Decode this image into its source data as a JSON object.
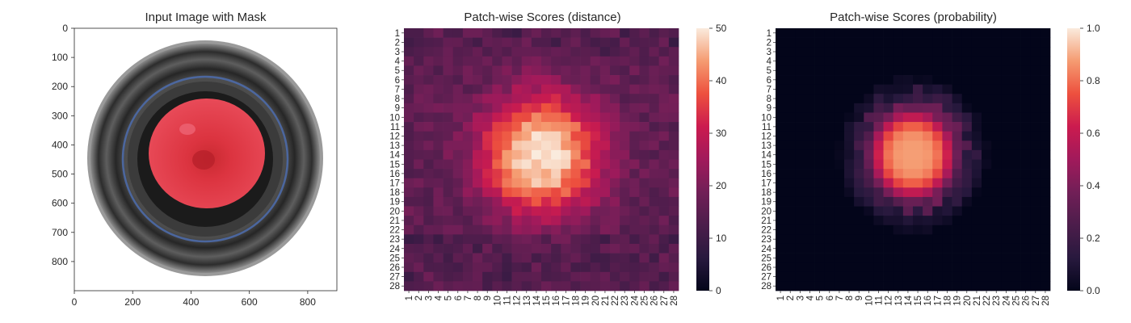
{
  "chart_data": [
    {
      "type": "image",
      "title": "Input Image with Mask",
      "xlim": [
        0,
        900
      ],
      "ylim": [
        0,
        900
      ],
      "xticks": [
        0,
        200,
        400,
        600,
        800
      ],
      "yticks": [
        0,
        100,
        200,
        300,
        400,
        500,
        600,
        700,
        800
      ],
      "content": "glass jar seen from above with red masked region",
      "mask_color": "#e0303a"
    },
    {
      "type": "heatmap",
      "title": "Patch-wise Scores (distance)",
      "rows": 28,
      "cols": 28,
      "row_labels": [
        "1",
        "2",
        "3",
        "4",
        "5",
        "6",
        "7",
        "8",
        "9",
        "10",
        "11",
        "12",
        "13",
        "14",
        "15",
        "16",
        "17",
        "18",
        "19",
        "20",
        "21",
        "22",
        "23",
        "24",
        "25",
        "26",
        "27",
        "28"
      ],
      "col_labels": [
        "1",
        "2",
        "3",
        "4",
        "5",
        "6",
        "7",
        "8",
        "9",
        "10",
        "11",
        "12",
        "13",
        "14",
        "15",
        "16",
        "17",
        "18",
        "19",
        "20",
        "21",
        "22",
        "23",
        "24",
        "25",
        "26",
        "27",
        "28"
      ],
      "colorbar": {
        "min": 0,
        "max": 50,
        "ticks": [
          0,
          10,
          20,
          30,
          40,
          50
        ]
      },
      "colormap": "rocket",
      "blob_center": {
        "row": 14,
        "col": 14.5
      },
      "peak_value": 49,
      "background_value": 16
    },
    {
      "type": "heatmap",
      "title": "Patch-wise Scores (probability)",
      "rows": 28,
      "cols": 28,
      "row_labels": [
        "1",
        "2",
        "3",
        "4",
        "5",
        "6",
        "7",
        "8",
        "9",
        "10",
        "11",
        "12",
        "13",
        "14",
        "15",
        "16",
        "17",
        "18",
        "19",
        "20",
        "21",
        "22",
        "23",
        "24",
        "25",
        "26",
        "27",
        "28"
      ],
      "col_labels": [
        "1",
        "2",
        "3",
        "4",
        "5",
        "6",
        "7",
        "8",
        "9",
        "10",
        "11",
        "12",
        "13",
        "14",
        "15",
        "16",
        "17",
        "18",
        "19",
        "20",
        "21",
        "22",
        "23",
        "24",
        "25",
        "26",
        "27",
        "28"
      ],
      "colorbar": {
        "min": 0.0,
        "max": 1.0,
        "ticks": [
          "0.0",
          "0.2",
          "0.4",
          "0.6",
          "0.8",
          "1.0"
        ]
      },
      "colormap": "rocket",
      "blob_center": {
        "row": 14,
        "col": 14.5
      },
      "peak_value": 0.88,
      "background_value": 0.0
    }
  ]
}
